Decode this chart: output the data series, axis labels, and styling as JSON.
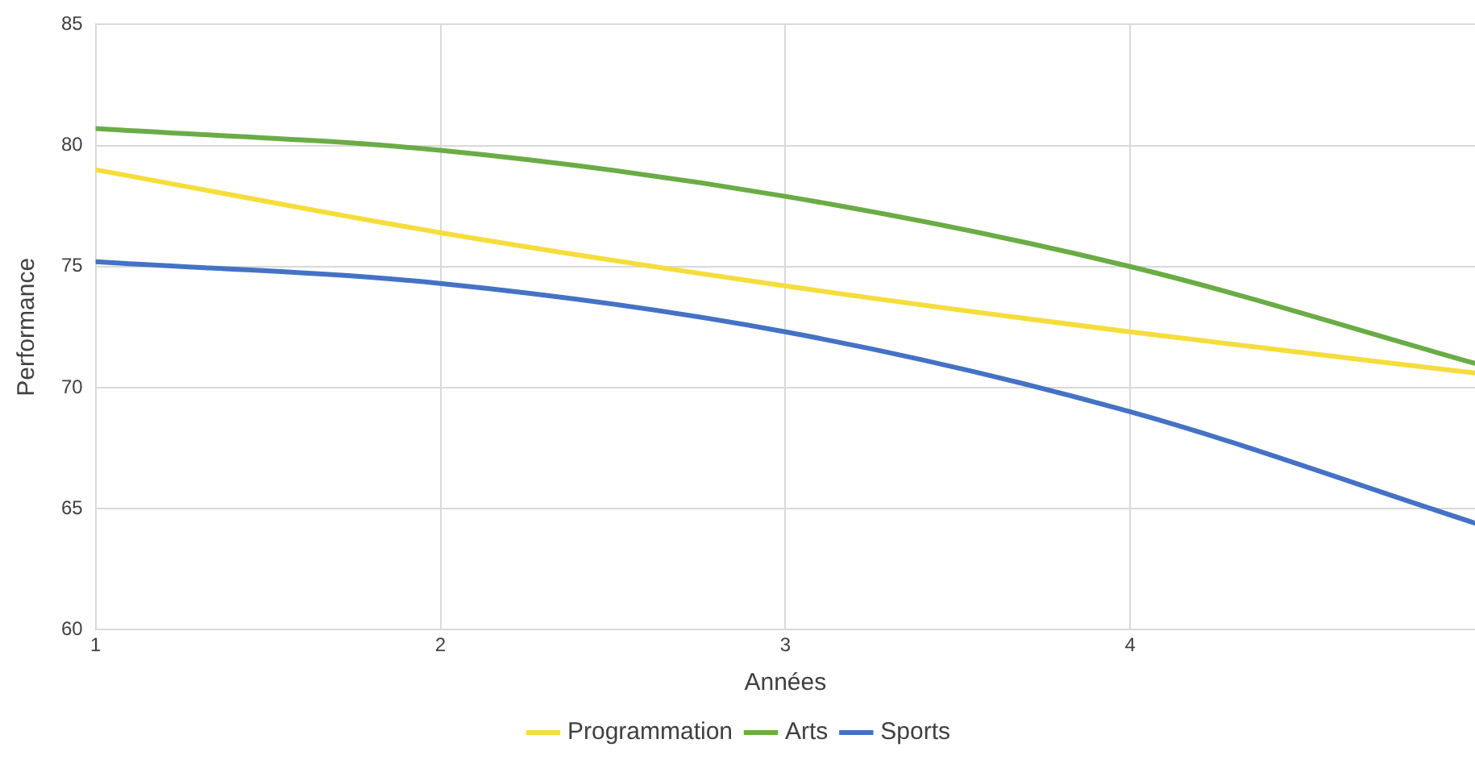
{
  "chart_data": {
    "type": "line",
    "xlabel": "Années",
    "ylabel": "Performance",
    "x": [
      1,
      2,
      3,
      4,
      5
    ],
    "series": [
      {
        "name": "Programmation",
        "color": "#f5dd3b",
        "values": [
          79,
          76.4,
          74.2,
          72.3,
          70.6
        ]
      },
      {
        "name": "Arts",
        "color": "#6aac45",
        "values": [
          80.7,
          79.8,
          77.9,
          75,
          71
        ]
      },
      {
        "name": "Sports",
        "color": "#4472c4",
        "values": [
          75.2,
          74.3,
          72.3,
          69,
          64.4
        ]
      }
    ],
    "xlim": [
      1,
      5
    ],
    "xticks": [
      1,
      2,
      3,
      4
    ],
    "ylim": [
      60,
      85
    ],
    "yticks": [
      60,
      65,
      70,
      75,
      80,
      85
    ],
    "grid": true,
    "legend": "bottom",
    "marker": "none",
    "line_style": "solid"
  }
}
